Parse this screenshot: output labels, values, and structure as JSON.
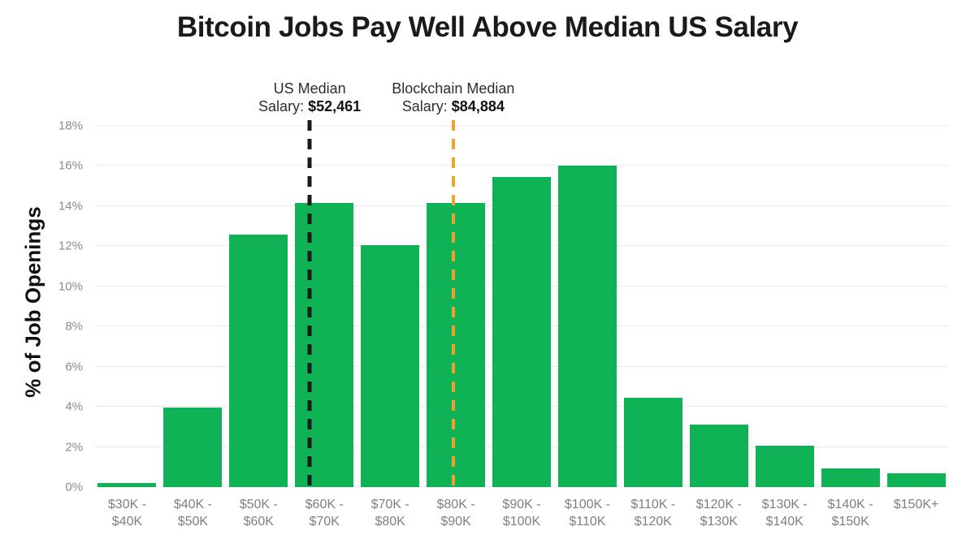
{
  "title": "Bitcoin Jobs Pay Well Above Median US Salary",
  "colors": {
    "bar": "#10b256",
    "grid": "#ececec",
    "us_median_line": "#1b1b1b",
    "blockchain_median_line": "#e9a52f",
    "tick_text": "#8a8a8a",
    "title_text": "#1a1a1a"
  },
  "chart_data": {
    "type": "bar",
    "title": "Bitcoin Jobs Pay Well Above Median US Salary",
    "ylabel": "% of Job Openings",
    "xlabel": "",
    "ylim": [
      0,
      18
    ],
    "ytick_step": 2,
    "ytick_labels": [
      "0%",
      "2%",
      "4%",
      "6%",
      "8%",
      "10%",
      "12%",
      "14%",
      "16%",
      "18%"
    ],
    "grid": true,
    "legend": "none",
    "categories": [
      "$30K -\n$40K",
      "$40K -\n$50K",
      "$50K -\n$60K",
      "$60K -\n$70K",
      "$70K -\n$80K",
      "$80K -\n$90K",
      "$90K -\n$100K",
      "$100K -\n$110K",
      "$110K -\n$120K",
      "$120K -\n$130K",
      "$130K -\n$140K",
      "$140K -\n$150K",
      "$150K+"
    ],
    "values": [
      0.2,
      3.95,
      12.6,
      14.15,
      12.05,
      14.15,
      15.45,
      16.0,
      4.45,
      3.1,
      2.05,
      0.95,
      0.7
    ],
    "bar_color": "#10b256",
    "annotations": [
      {
        "id": "us-median",
        "line1": "US Median",
        "line2_prefix": "Salary: ",
        "value": "$52,461",
        "x_pct": 25.2,
        "line_color": "#1b1b1b",
        "line_width": 5
      },
      {
        "id": "blockchain-median",
        "line1": "Blockchain Median",
        "line2_prefix": "Salary: ",
        "value": "$84,884",
        "x_pct": 42.0,
        "line_color": "#e9a52f",
        "line_width": 4
      }
    ]
  }
}
